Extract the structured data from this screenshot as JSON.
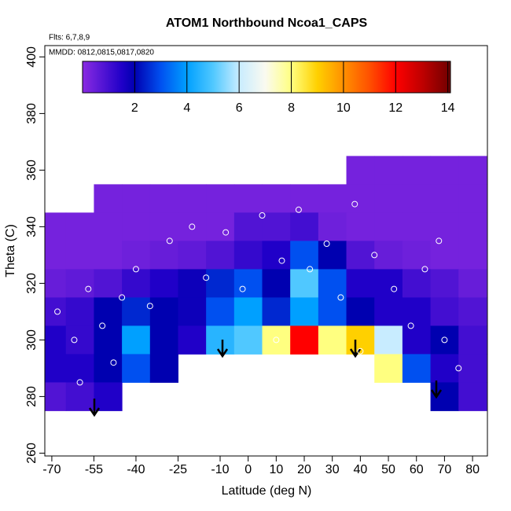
{
  "chart_data": {
    "type": "heatmap",
    "title": "ATOM1 Northbound Ncoa1_CAPS",
    "subtitle": "Flts: 6,7,8,9",
    "annotation": "MMDD: 0812,0815,0817,0820",
    "x_label": "Latitude (deg N)",
    "y_label": "Theta (C)",
    "x": [
      -70,
      -60,
      -50,
      -40,
      -30,
      -20,
      -10,
      0,
      10,
      20,
      30,
      40,
      50,
      60,
      70,
      80
    ],
    "y": [
      360,
      350,
      340,
      330,
      320,
      310,
      300,
      290,
      280
    ],
    "z": [
      [
        null,
        null,
        null,
        null,
        null,
        null,
        null,
        null,
        null,
        null,
        null,
        0.3,
        0.3,
        0.3,
        0.3,
        0.3
      ],
      [
        null,
        null,
        0.3,
        0.3,
        0.3,
        0.3,
        0.3,
        0.3,
        0.3,
        0.3,
        0.3,
        0.3,
        0.3,
        0.3,
        0.3,
        0.3
      ],
      [
        0.3,
        0.3,
        0.3,
        0.3,
        0.3,
        0.3,
        0.3,
        0.8,
        0.8,
        1.0,
        0.4,
        0.3,
        0.3,
        0.3,
        0.3,
        0.3
      ],
      [
        0.3,
        0.3,
        0.3,
        0.4,
        0.5,
        0.6,
        0.8,
        1.2,
        1.5,
        3.0,
        2.0,
        0.8,
        0.5,
        0.4,
        0.3,
        0.3
      ],
      [
        0.5,
        0.6,
        0.8,
        1.2,
        1.5,
        1.8,
        2.5,
        3.0,
        2.0,
        5.0,
        3.0,
        1.5,
        1.5,
        1.0,
        0.8,
        0.5
      ],
      [
        1.0,
        1.2,
        2.0,
        2.5,
        2.0,
        1.8,
        3.0,
        4.0,
        2.5,
        4.0,
        3.0,
        2.0,
        1.5,
        1.5,
        1.0,
        0.8
      ],
      [
        1.5,
        1.2,
        2.0,
        4.0,
        2.0,
        1.5,
        4.5,
        5.0,
        8.0,
        12.0,
        8.0,
        9.0,
        6.0,
        1.5,
        2.0,
        1.0
      ],
      [
        1.5,
        1.5,
        2.0,
        3.0,
        2.0,
        null,
        null,
        null,
        null,
        null,
        null,
        null,
        8.0,
        3.0,
        1.5,
        1.0
      ],
      [
        0.8,
        1.0,
        1.5,
        null,
        null,
        null,
        null,
        null,
        null,
        null,
        null,
        null,
        null,
        null,
        2.0,
        1.0
      ]
    ],
    "points": {
      "x": [
        -68,
        -62,
        -57,
        -52,
        -45,
        -40,
        -35,
        -28,
        -20,
        -15,
        -8,
        -2,
        5,
        12,
        18,
        22,
        28,
        33,
        38,
        45,
        52,
        58,
        63,
        70,
        75,
        -60,
        -48,
        10,
        40,
        68
      ],
      "y": [
        310,
        300,
        318,
        305,
        315,
        325,
        312,
        335,
        340,
        322,
        338,
        318,
        344,
        328,
        346,
        325,
        334,
        315,
        348,
        330,
        318,
        305,
        325,
        300,
        290,
        285,
        292,
        300,
        296,
        335
      ]
    },
    "xlim": [
      -72.5,
      85.3
    ],
    "ylim": [
      259,
      404
    ],
    "xticks": [
      -70,
      -55,
      -40,
      -25,
      -10,
      0,
      10,
      20,
      30,
      40,
      50,
      60,
      70,
      80
    ],
    "yticks": [
      260,
      280,
      300,
      320,
      340,
      360,
      380,
      400
    ],
    "clim": [
      0,
      14.1
    ],
    "cticks": [
      2,
      4,
      6,
      8,
      10,
      12,
      14
    ],
    "colorscale": [
      [
        0,
        "#8a2be2"
      ],
      [
        1.5,
        "#2000c8"
      ],
      [
        2,
        "#0000b0"
      ],
      [
        3,
        "#0050f0"
      ],
      [
        4,
        "#00a0ff"
      ],
      [
        5,
        "#50c8ff"
      ],
      [
        6,
        "#c8ecff"
      ],
      [
        7,
        "#fafaf0"
      ],
      [
        8,
        "#ffff80"
      ],
      [
        9,
        "#ffd000"
      ],
      [
        10,
        "#ff9000"
      ],
      [
        11,
        "#ff5000"
      ],
      [
        12,
        "#ff0000"
      ],
      [
        13,
        "#c00000"
      ],
      [
        14.1,
        "#700000"
      ]
    ],
    "point_color": "#ffffff"
  }
}
